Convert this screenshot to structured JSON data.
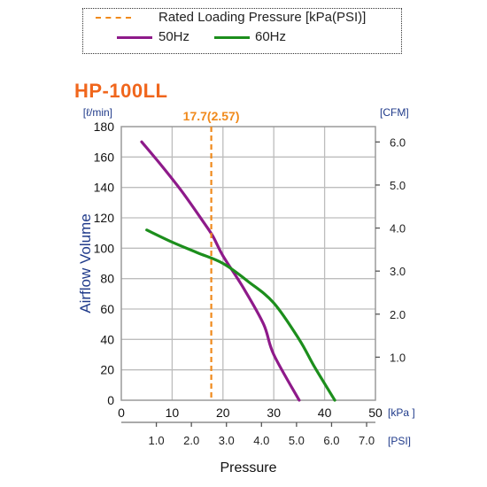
{
  "legend": {
    "rated": "Rated Loading Pressure [kPa(PSI)]",
    "hz50": "50Hz",
    "hz60": "60Hz"
  },
  "title": "HP-100LL",
  "chart_data": {
    "type": "line",
    "title": "HP-100LL",
    "xlabel": "Pressure",
    "ylabel": "Airflow Volume",
    "x_unit": "[kPa ]",
    "x2_unit": "[PSI]",
    "y_unit": "[ℓ/min]",
    "y2_unit": "[CFM]",
    "xlim": [
      0,
      50
    ],
    "ylim": [
      0,
      180
    ],
    "x_ticks": [
      0,
      10,
      20,
      30,
      40,
      50
    ],
    "y_ticks": [
      0,
      20,
      40,
      60,
      80,
      100,
      120,
      140,
      160,
      180
    ],
    "x2_ticks": [
      1.0,
      2.0,
      3.0,
      4.0,
      5.0,
      6.0,
      7.0
    ],
    "x2_tick_labels": [
      "1.0",
      "2.0",
      "3.0",
      "4.0",
      "5.0",
      "6.0",
      "7.0"
    ],
    "y2_ticks": [
      1.0,
      2.0,
      3.0,
      4.0,
      5.0,
      6.0
    ],
    "y2_tick_labels": [
      "1.0",
      "2.0",
      "3.0",
      "4.0",
      "5.0",
      "6.0"
    ],
    "grid": true,
    "rated_pressure": {
      "kpa": 17.7,
      "label": "17.7(2.57)",
      "color": "#f08a1c"
    },
    "series": [
      {
        "name": "50Hz",
        "color": "#8e1a8a",
        "x": [
          4,
          8,
          12,
          16,
          18,
          20,
          24,
          28,
          30,
          35
        ],
        "y": [
          170,
          154,
          137,
          118,
          108,
          95,
          74,
          50,
          30,
          0
        ]
      },
      {
        "name": "60Hz",
        "color": "#1c8e1c",
        "x": [
          5,
          10,
          15,
          20,
          25,
          30,
          35,
          38,
          42
        ],
        "y": [
          112,
          104,
          97,
          90,
          78,
          64,
          40,
          22,
          0
        ]
      }
    ]
  }
}
